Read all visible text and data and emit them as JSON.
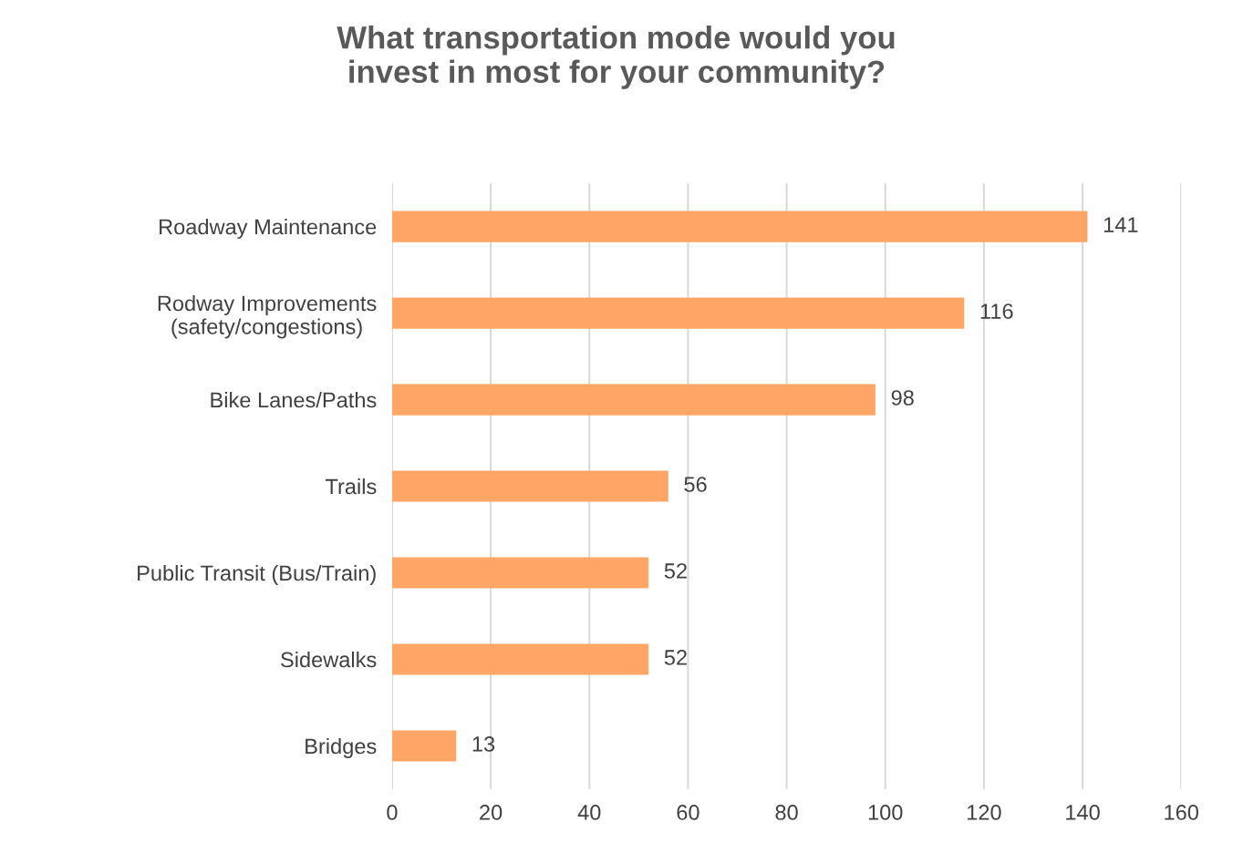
{
  "chart_data": {
    "type": "bar",
    "orientation": "horizontal",
    "title": "What transportation mode would you\ninvest in most for your community?",
    "categories": [
      "Roadway Maintenance",
      "Rodway Improvements\n(safety/congestions)",
      "Bike Lanes/Paths",
      "Trails",
      "Public Transit (Bus/Train)",
      "Sidewalks",
      "Bridges"
    ],
    "values": [
      141,
      116,
      98,
      56,
      52,
      52,
      13
    ],
    "color": "#ffa566",
    "xlim": [
      0,
      160
    ],
    "xticks": [
      0,
      20,
      40,
      60,
      80,
      100,
      120,
      140,
      160
    ],
    "grid": "x",
    "data_labels": true
  }
}
